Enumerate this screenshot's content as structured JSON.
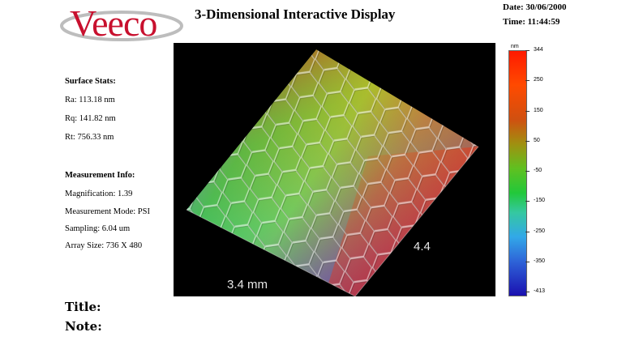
{
  "header": {
    "logo_text": "Veeco",
    "title": "3-Dimensional Interactive Display",
    "date": "Date: 30/06/2000",
    "time": "Time: 11:44:59"
  },
  "surface_stats": {
    "heading": "Surface Stats:",
    "ra": "Ra: 113.18 nm",
    "rq": "Rq: 141.82 nm",
    "rt": "Rt: 756.33 nm"
  },
  "measurement_info": {
    "heading": "Measurement Info:",
    "magnification": "Magnification: 1.39",
    "mode": "Measurement Mode: PSI",
    "sampling": "Sampling: 6.04 um",
    "array_size": "Array Size: 736 X 480"
  },
  "plot": {
    "axis_x_label": "3.4 mm",
    "axis_y_label": "4.4"
  },
  "colorbar": {
    "unit": "nm",
    "ticks": [
      "344",
      "250",
      "150",
      "50",
      "-50",
      "-150",
      "-250",
      "-350",
      "-413"
    ],
    "colors": [
      "#ff1a00",
      "#ff4a00",
      "#d05010",
      "#a09010",
      "#60c020",
      "#22c83a",
      "#35c8a0",
      "#32a8e8",
      "#2e64d8",
      "#1a10b0"
    ]
  },
  "footer": {
    "title_label": "Title:",
    "note_label": "Note:"
  }
}
